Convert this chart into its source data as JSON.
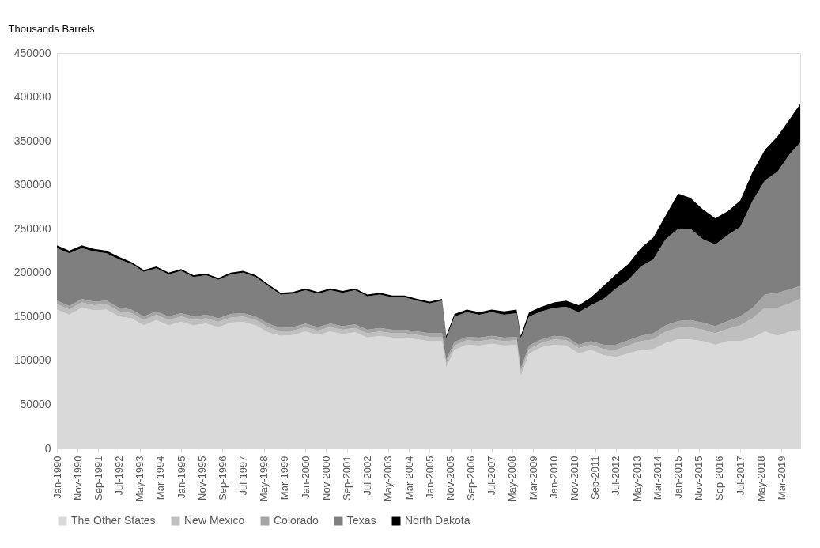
{
  "chart_data": {
    "type": "area",
    "stacked": true,
    "ylabel": "Thousands Barrels",
    "legend": "bottom",
    "grid": false,
    "x": [
      "1990-01",
      "1990-07",
      "1991-01",
      "1991-07",
      "1992-01",
      "1992-07",
      "1993-01",
      "1993-07",
      "1994-01",
      "1994-07",
      "1995-01",
      "1995-07",
      "1996-01",
      "1996-07",
      "1997-01",
      "1997-07",
      "1998-01",
      "1998-07",
      "1999-01",
      "1999-07",
      "2000-01",
      "2000-07",
      "2001-01",
      "2001-07",
      "2002-01",
      "2002-07",
      "2003-01",
      "2003-07",
      "2004-01",
      "2004-07",
      "2005-01",
      "2005-07",
      "2005-09",
      "2006-01",
      "2006-07",
      "2007-01",
      "2007-07",
      "2008-01",
      "2008-07",
      "2008-09",
      "2009-01",
      "2009-07",
      "2010-01",
      "2010-07",
      "2011-01",
      "2011-07",
      "2012-01",
      "2012-07",
      "2013-01",
      "2013-07",
      "2014-01",
      "2014-07",
      "2015-01",
      "2015-07",
      "2016-01",
      "2016-07",
      "2017-01",
      "2017-07",
      "2018-01",
      "2018-07",
      "2019-01",
      "2019-07",
      "2019-12"
    ],
    "xlim": [
      "1990-01",
      "2019-12"
    ],
    "xticks": [
      {
        "value": "1990-01",
        "label": "Jan-1990"
      },
      {
        "value": "1990-11",
        "label": "Nov-1990"
      },
      {
        "value": "1991-09",
        "label": "Sep-1991"
      },
      {
        "value": "1992-07",
        "label": "Jul-1992"
      },
      {
        "value": "1993-05",
        "label": "May-1993"
      },
      {
        "value": "1994-03",
        "label": "Mar-1994"
      },
      {
        "value": "1995-01",
        "label": "Jan-1995"
      },
      {
        "value": "1995-11",
        "label": "Nov-1995"
      },
      {
        "value": "1996-09",
        "label": "Sep-1996"
      },
      {
        "value": "1997-07",
        "label": "Jul-1997"
      },
      {
        "value": "1998-05",
        "label": "May-1998"
      },
      {
        "value": "1999-03",
        "label": "Mar-1999"
      },
      {
        "value": "2000-01",
        "label": "Jan-2000"
      },
      {
        "value": "2000-11",
        "label": "Nov-2000"
      },
      {
        "value": "2001-09",
        "label": "Sep-2001"
      },
      {
        "value": "2002-07",
        "label": "Jul-2002"
      },
      {
        "value": "2003-05",
        "label": "May-2003"
      },
      {
        "value": "2004-03",
        "label": "Mar-2004"
      },
      {
        "value": "2005-01",
        "label": "Jan-2005"
      },
      {
        "value": "2005-11",
        "label": "Nov-2005"
      },
      {
        "value": "2006-09",
        "label": "Sep-2006"
      },
      {
        "value": "2007-07",
        "label": "Jul-2007"
      },
      {
        "value": "2008-05",
        "label": "May-2008"
      },
      {
        "value": "2009-03",
        "label": "Mar-2009"
      },
      {
        "value": "2010-01",
        "label": "Jan-2010"
      },
      {
        "value": "2010-11",
        "label": "Nov-2010"
      },
      {
        "value": "2011-09",
        "label": "Sep-2011"
      },
      {
        "value": "2012-07",
        "label": "Jul-2012"
      },
      {
        "value": "2013-05",
        "label": "May-2013"
      },
      {
        "value": "2014-03",
        "label": "Mar-2014"
      },
      {
        "value": "2015-01",
        "label": "Jan-2015"
      },
      {
        "value": "2015-11",
        "label": "Nov-2015"
      },
      {
        "value": "2016-09",
        "label": "Sep-2016"
      },
      {
        "value": "2017-07",
        "label": "Jul-2017"
      },
      {
        "value": "2018-05",
        "label": "May-2018"
      },
      {
        "value": "2019-03",
        "label": "Mar-2019"
      }
    ],
    "ylim": [
      0,
      450000
    ],
    "yticks": [
      0,
      50000,
      100000,
      150000,
      200000,
      250000,
      300000,
      350000,
      400000,
      450000
    ],
    "series": [
      {
        "name": "The Other States",
        "color": "#d9d9d9",
        "values": [
          158000,
          152000,
          160000,
          157000,
          158000,
          150000,
          148000,
          140000,
          146000,
          140000,
          144000,
          140000,
          142000,
          138000,
          143000,
          144000,
          140000,
          132000,
          128000,
          129000,
          133000,
          129000,
          133000,
          130000,
          132000,
          126000,
          128000,
          126000,
          126000,
          124000,
          122000,
          122000,
          92000,
          112000,
          118000,
          117000,
          119000,
          117000,
          118000,
          82000,
          108000,
          115000,
          118000,
          117000,
          108000,
          112000,
          106000,
          104000,
          108000,
          112000,
          113000,
          120000,
          124000,
          124000,
          122000,
          118000,
          122000,
          122000,
          126000,
          133000,
          128000,
          133000,
          135000
        ]
      },
      {
        "name": "New Mexico",
        "color": "#bfbfbf",
        "values": [
          6000,
          6000,
          6000,
          6000,
          6000,
          6000,
          6000,
          6000,
          6000,
          6000,
          6000,
          6000,
          6000,
          6000,
          6000,
          6000,
          6000,
          6000,
          5000,
          5000,
          5000,
          5000,
          5000,
          5000,
          5000,
          5000,
          5000,
          5000,
          5000,
          5000,
          5000,
          5000,
          5000,
          5000,
          5000,
          5000,
          5000,
          5000,
          5000,
          5000,
          5000,
          5000,
          6000,
          6000,
          6000,
          6000,
          7000,
          8000,
          9000,
          10000,
          11000,
          13000,
          13000,
          14000,
          13000,
          13000,
          14000,
          18000,
          22000,
          27000,
          32000,
          32000,
          35000
        ]
      },
      {
        "name": "Colorado",
        "color": "#a5a5a5",
        "values": [
          4000,
          4000,
          4000,
          4000,
          4000,
          4000,
          4000,
          4000,
          4000,
          4000,
          4000,
          4000,
          4000,
          4000,
          4000,
          4000,
          4000,
          4000,
          4000,
          4000,
          4000,
          4000,
          4000,
          4000,
          4000,
          4000,
          4000,
          4000,
          4000,
          4000,
          4000,
          4000,
          4000,
          4000,
          4000,
          4000,
          4000,
          4000,
          4000,
          4000,
          4000,
          4000,
          4000,
          4000,
          4000,
          4000,
          5000,
          6000,
          6000,
          6000,
          7000,
          7000,
          8000,
          8000,
          8000,
          8000,
          9000,
          10000,
          12000,
          15000,
          17000,
          16000,
          15000
        ]
      },
      {
        "name": "Texas",
        "color": "#7f7f7f",
        "values": [
          60000,
          60000,
          58000,
          57000,
          54000,
          55000,
          52000,
          51000,
          49000,
          48000,
          48000,
          45000,
          45000,
          44000,
          45000,
          46000,
          45000,
          43000,
          38000,
          38000,
          38000,
          38000,
          38000,
          38000,
          39000,
          38000,
          38000,
          37000,
          37000,
          35000,
          34000,
          37000,
          24000,
          29000,
          28000,
          26000,
          27000,
          26000,
          27000,
          34000,
          33000,
          32000,
          32000,
          34000,
          37000,
          41000,
          52000,
          64000,
          69000,
          79000,
          84000,
          98000,
          105000,
          104000,
          95000,
          93000,
          98000,
          102000,
          122000,
          130000,
          138000,
          154000,
          163000
        ]
      },
      {
        "name": "North Dakota",
        "color": "#000000",
        "values": [
          3000,
          3000,
          3000,
          3000,
          3000,
          3000,
          2000,
          2000,
          2000,
          2000,
          2000,
          2000,
          2000,
          2000,
          2000,
          2000,
          2000,
          2000,
          2000,
          2000,
          2000,
          2000,
          2000,
          2000,
          2000,
          2000,
          2000,
          2000,
          2000,
          2000,
          2000,
          2000,
          3000,
          3000,
          3000,
          3000,
          3000,
          4000,
          4000,
          3000,
          5000,
          5000,
          6000,
          7000,
          8000,
          9000,
          15000,
          16000,
          18000,
          21000,
          25000,
          27000,
          40000,
          35000,
          34000,
          30000,
          27000,
          30000,
          33000,
          35000,
          40000,
          40000,
          44000
        ]
      }
    ]
  }
}
